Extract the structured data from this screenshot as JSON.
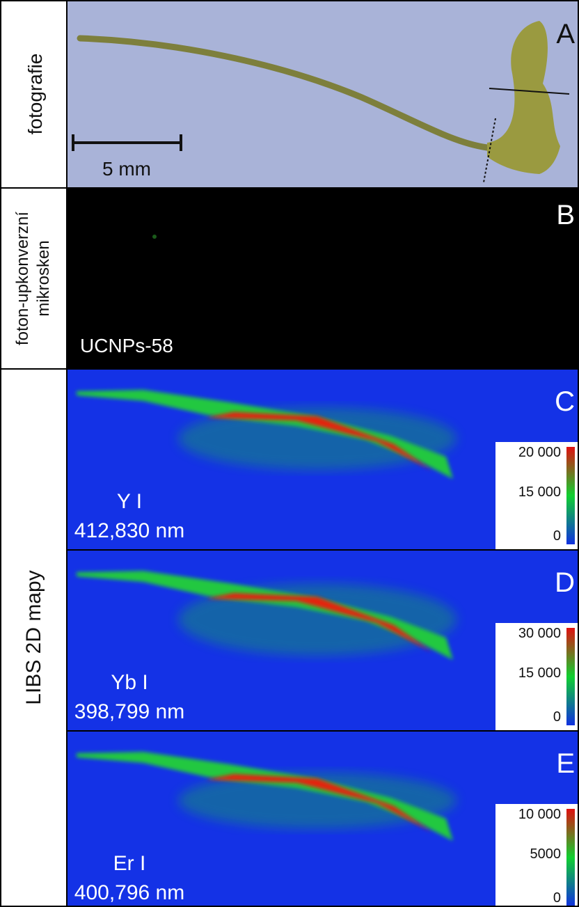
{
  "row_labels": {
    "photo": "fotografie",
    "microscope": [
      "foton-upkonverzní",
      "mikrosken"
    ],
    "libs": "LIBS 2D mapy"
  },
  "panels": [
    {
      "letter": "A",
      "scale_bar": "5 mm"
    },
    {
      "letter": "B",
      "label": "UCNPs-58"
    },
    {
      "letter": "C",
      "element": "Y I",
      "wavelength": "412,830 nm",
      "colorbar": [
        "20 000",
        "15 000",
        "0"
      ]
    },
    {
      "letter": "D",
      "element": "Yb I",
      "wavelength": "398,799 nm",
      "colorbar": [
        "30 000",
        "15 000",
        "0"
      ]
    },
    {
      "letter": "E",
      "element": "Er I",
      "wavelength": "400,796 nm",
      "colorbar": [
        "10 000",
        "5000",
        "0"
      ]
    }
  ]
}
